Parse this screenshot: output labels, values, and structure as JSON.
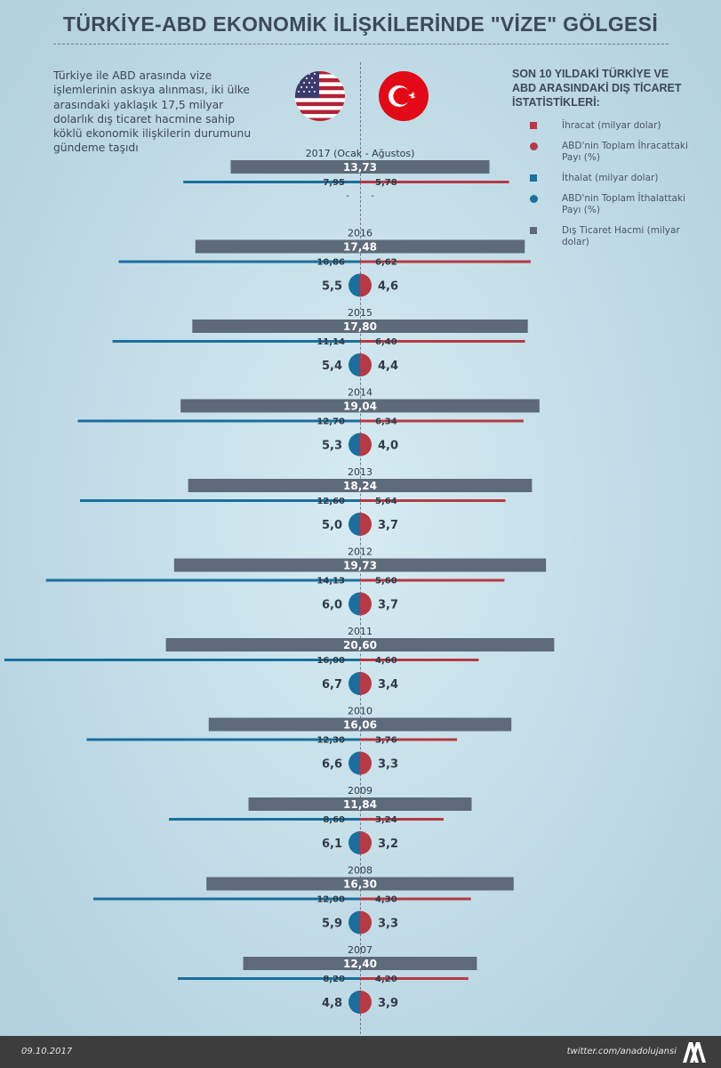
{
  "title": "TÜRKİYE-ABD EKONOMİK İLİŞKİLERİNDE \"VİZE\" GÖLGESİ",
  "intro": "Türkiye ile ABD arasında vize işlemlerinin askıya alınması, iki ülke arasındaki yaklaşık 17,5 milyar dolarlık dış ticaret hacmine sahip köklü ekonomik ilişkilerin durumunu gündeme taşıdı",
  "legend": {
    "title": "SON 10 YILDAKİ TÜRKİYE VE ABD ARASINDAKİ DIŞ TİCARET İSTATİSTİKLERİ:",
    "items": [
      {
        "label": "İhracat (milyar dolar)",
        "color": "#b53a44",
        "shape": "square"
      },
      {
        "label": "ABD'nin Toplam İhracattaki Payı (%)",
        "color": "#b53a44",
        "shape": "circle"
      },
      {
        "label": "İthalat (milyar dolar)",
        "color": "#1b6f9e",
        "shape": "square"
      },
      {
        "label": "ABD'nin Toplam İthalattaki Payı (%)",
        "color": "#1b6f9e",
        "shape": "circle"
      },
      {
        "label": "Dış Ticaret Hacmi (milyar dolar)",
        "color": "#5d6a79",
        "shape": "square"
      }
    ]
  },
  "colors": {
    "export": "#b53a44",
    "import": "#1b6f9e",
    "volume": "#5d6a79"
  },
  "chart_data": {
    "type": "bar",
    "categories": [
      "2017 (Ocak - Ağustos)",
      "2016",
      "2015",
      "2014",
      "2013",
      "2012",
      "2011",
      "2010",
      "2009",
      "2008",
      "2007"
    ],
    "series": [
      {
        "name": "Dış Ticaret Hacmi (milyar dolar)",
        "values": [
          13.73,
          17.48,
          17.8,
          19.04,
          18.24,
          19.73,
          20.6,
          16.06,
          11.84,
          16.3,
          12.4
        ],
        "labels": [
          "13,73",
          "17,48",
          "17,80",
          "19,04",
          "18,24",
          "19,73",
          "20,60",
          "16,06",
          "11,84",
          "16,30",
          "12,40"
        ]
      },
      {
        "name": "İthalat (milyar dolar)",
        "values": [
          7.95,
          10.86,
          11.14,
          12.7,
          12.6,
          14.13,
          16.0,
          12.3,
          8.6,
          12.0,
          8.2
        ],
        "labels": [
          "7,95",
          "10,86",
          "11,14",
          "12,70",
          "12,60",
          "14,13",
          "16,00",
          "12,30",
          "8,60",
          "12,00",
          "8,20"
        ]
      },
      {
        "name": "İhracat (milyar dolar)",
        "values": [
          5.78,
          6.62,
          6.4,
          6.34,
          5.64,
          5.6,
          4.6,
          3.76,
          3.24,
          4.3,
          4.2
        ],
        "labels": [
          "5,78",
          "6,62",
          "6,40",
          "6,34",
          "5,64",
          "5,60",
          "4,60",
          "3,76",
          "3,24",
          "4,30",
          "4,20"
        ]
      },
      {
        "name": "ABD'nin Toplam İthalattaki Payı (%)",
        "values": [
          null,
          5.5,
          5.4,
          5.3,
          5.0,
          6.0,
          6.7,
          6.6,
          6.1,
          5.9,
          4.8
        ],
        "labels": [
          "-",
          "5,5",
          "5,4",
          "5,3",
          "5,0",
          "6,0",
          "6,7",
          "6,6",
          "6,1",
          "5,9",
          "4,8"
        ]
      },
      {
        "name": "ABD'nin Toplam İhracattaki Payı (%)",
        "values": [
          null,
          4.6,
          4.4,
          4.0,
          3.7,
          3.7,
          3.4,
          3.3,
          3.2,
          3.3,
          3.9
        ],
        "labels": [
          "-",
          "4,6",
          "4,4",
          "4,0",
          "3,7",
          "3,7",
          "3,4",
          "3,3",
          "3,2",
          "3,3",
          "3,9"
        ]
      }
    ]
  },
  "footer": {
    "date": "09.10.2017",
    "handle": "twitter.com/anadolujansi",
    "logo_text": "AA"
  }
}
